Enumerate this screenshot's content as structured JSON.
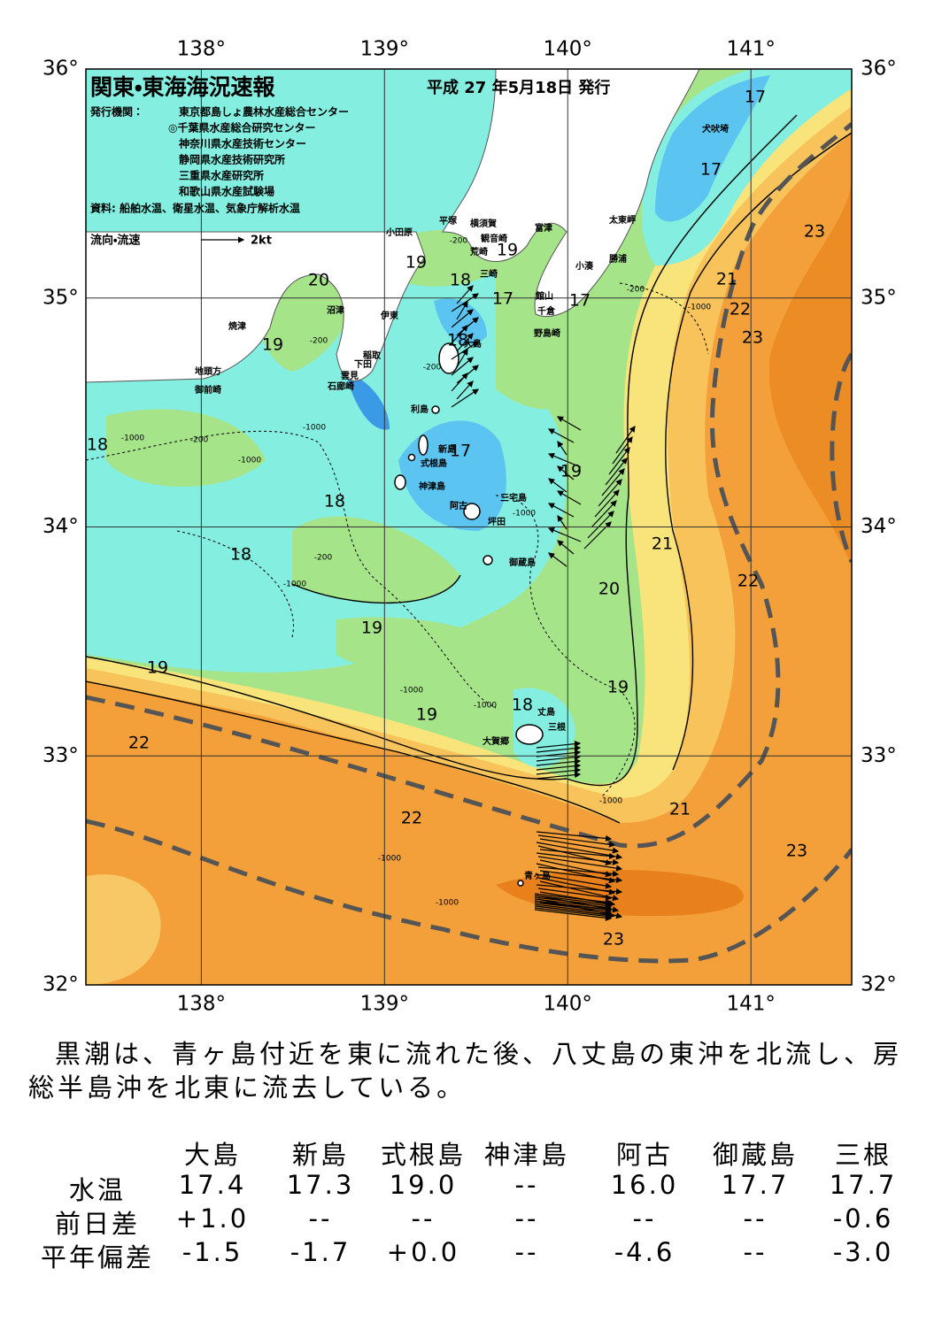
{
  "map": {
    "title": "関東・東海海況速報",
    "issue_date": "平成 27 年5月18日 発行",
    "issuer_label": "発行機関：",
    "issuers": [
      "東京都島しょ農林水産総合センター",
      "◎千葉県水産総合研究センター",
      "神奈川県水産技術センター",
      "静岡県水産技術研究所",
      "三重県水産研究所",
      "和歌山県水産試験場"
    ],
    "sources": "資料: 船舶水温、衛星水温、気象庁解析水温",
    "legend": {
      "label": "流向・流速",
      "scale": "2kt"
    },
    "xlim": [
      137.37,
      141.55
    ],
    "ylim": [
      32,
      36
    ],
    "xticks": [
      {
        "value": 138,
        "label": "138°"
      },
      {
        "value": 139,
        "label": "139°"
      },
      {
        "value": 140,
        "label": "140°"
      },
      {
        "value": 141,
        "label": "141°"
      }
    ],
    "yticks": [
      {
        "value": 32,
        "label": "32°"
      },
      {
        "value": 33,
        "label": "33°"
      },
      {
        "value": 34,
        "label": "34°"
      },
      {
        "value": 35,
        "label": "35°"
      },
      {
        "value": 36,
        "label": "36°"
      }
    ],
    "isotherm_labels": [
      17,
      17,
      23,
      21,
      22,
      23,
      20,
      19,
      18,
      19,
      17,
      17,
      19,
      18,
      18,
      17,
      19,
      18,
      18,
      21,
      22,
      20,
      19,
      19,
      19,
      18,
      19,
      22,
      21,
      22,
      23,
      23
    ],
    "depth_labels": [
      -200,
      -200,
      -1000,
      -200,
      -200,
      -1000,
      -1000,
      -200,
      -1000,
      -1000,
      -200,
      -1000,
      -1000,
      -1000,
      -1000,
      -1000,
      -1000
    ],
    "place_labels": [
      "犬吠埼",
      "太東岬",
      "勝浦",
      "小湊",
      "富津",
      "館山",
      "千倉",
      "野島崎",
      "横須賀",
      "観音崎",
      "荒崎",
      "三崎",
      "平塚",
      "小田原",
      "沼津",
      "伊東",
      "焼津",
      "稲取",
      "下田",
      "雲見",
      "石廊崎",
      "地頭方",
      "御前崎",
      "大島",
      "利島",
      "新島",
      "式根島",
      "神津島",
      "三宅島",
      "阿古",
      "坪田",
      "御蔵島",
      "丈島",
      "三根",
      "大賀郷",
      "青ヶ島"
    ]
  },
  "description": "黒潮は、青ヶ島付近を東に流れた後、八丈島の東沖を北流し、房総半島沖を北東に流去している。",
  "table": {
    "header": [
      "大島",
      "新島",
      "式根島",
      "神津島",
      "阿古",
      "御蔵島",
      "三根"
    ],
    "rows": [
      {
        "label": "水温",
        "cells": [
          "17.4",
          "17.3",
          "19.0",
          "--",
          "16.0",
          "17.7",
          "17.7"
        ]
      },
      {
        "label": "前日差",
        "cells": [
          "+1.0",
          "--",
          "--",
          "--",
          "--",
          "--",
          "-0.6"
        ]
      },
      {
        "label": "平年偏差",
        "cells": [
          "-1.5",
          "-1.7",
          "+0.0",
          "--",
          "-4.6",
          "--",
          "-3.0"
        ]
      }
    ]
  }
}
